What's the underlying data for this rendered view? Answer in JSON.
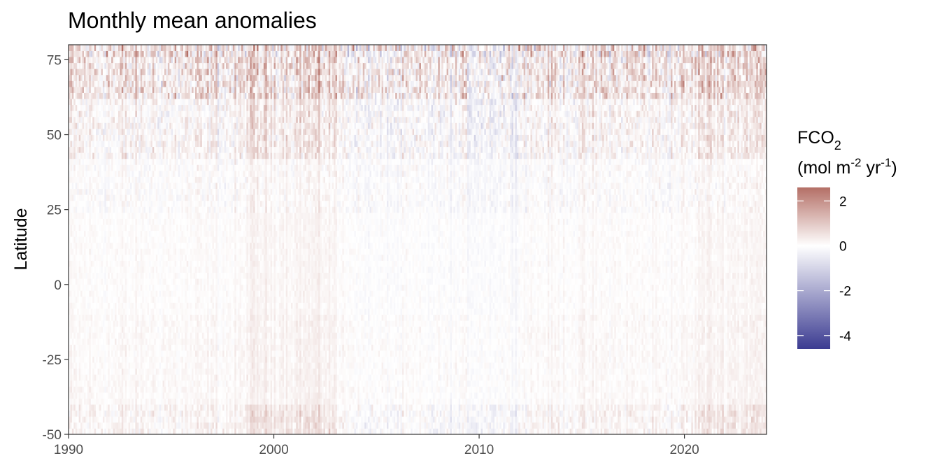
{
  "chart_data": {
    "type": "heatmap",
    "title": "Monthly mean anomalies",
    "xlabel": "",
    "ylabel": "Latitude",
    "x_ticks": [
      1990,
      2000,
      2010,
      2020
    ],
    "y_ticks": [
      75,
      50,
      25,
      0,
      -25,
      -50
    ],
    "xlim": [
      1990,
      2024
    ],
    "ylim": [
      -50,
      80
    ],
    "x_resolution": "monthly",
    "legend": {
      "title_main": "FCO",
      "title_sub": "2",
      "unit_open": "(mol m",
      "unit_exp1": "-2",
      "unit_mid": " yr",
      "unit_exp2": "-1",
      "unit_close": ")",
      "placement": "right",
      "range": [
        -4.6,
        2.6
      ],
      "ticks": [
        2,
        0,
        -2,
        -4
      ],
      "colors": {
        "low": "#3b3b91",
        "mid": "#ffffff",
        "high": "#b46f66"
      }
    },
    "grid": false,
    "pattern_description_by_latitude": [
      {
        "lat_range": [
          62,
          80
        ],
        "mean_anomaly": 0.4,
        "variability": 1.6
      },
      {
        "lat_range": [
          42,
          62
        ],
        "mean_anomaly": 0.1,
        "variability": 0.9
      },
      {
        "lat_range": [
          25,
          42
        ],
        "mean_anomaly": 0.0,
        "variability": 0.45
      },
      {
        "lat_range": [
          -10,
          25
        ],
        "mean_anomaly": 0.05,
        "variability": 0.25
      },
      {
        "lat_range": [
          -40,
          -10
        ],
        "mean_anomaly": 0.1,
        "variability": 0.3
      },
      {
        "lat_range": [
          -50,
          -40
        ],
        "mean_anomaly": 0.15,
        "variability": 0.6
      }
    ]
  }
}
